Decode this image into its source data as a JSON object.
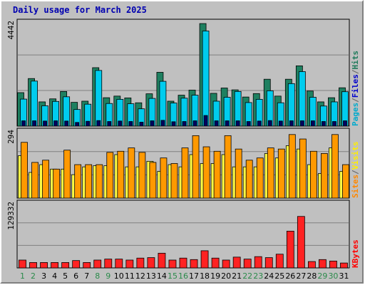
{
  "title": "Daily usage for March 2025",
  "chart_data": [
    {
      "type": "bar",
      "panel": "pages-files-hits",
      "categories": [
        "1",
        "2",
        "3",
        "4",
        "5",
        "6",
        "7",
        "8",
        "9",
        "10",
        "11",
        "12",
        "13",
        "14",
        "15",
        "16",
        "17",
        "18",
        "19",
        "20",
        "21",
        "22",
        "23",
        "24",
        "25",
        "26",
        "27",
        "28",
        "29",
        "30",
        "31"
      ],
      "ylim": [
        0,
        4442
      ],
      "y_tick_label": "4442",
      "grid": true,
      "legend_right_vertical": [
        {
          "name": "Pages",
          "color": "#00aacc"
        },
        {
          "name": "Files",
          "color": "#0000cc"
        },
        {
          "name": "Hits",
          "color": "#1e7a5a"
        }
      ],
      "series": [
        {
          "name": "Hits",
          "color": "#1e8060",
          "values": [
            1450,
            2060,
            1050,
            1180,
            1500,
            1030,
            1080,
            2530,
            1230,
            1300,
            1220,
            1010,
            1400,
            2330,
            1080,
            1340,
            1560,
            4440,
            1420,
            1650,
            1570,
            1260,
            1410,
            2030,
            1300,
            2030,
            2610,
            1520,
            1050,
            1230,
            1660
          ]
        },
        {
          "name": "Files",
          "color": "#00ccee",
          "values": [
            1170,
            1950,
            880,
            1070,
            1270,
            720,
            950,
            2410,
            980,
            1160,
            970,
            750,
            1200,
            1940,
            1000,
            1210,
            1340,
            4120,
            1080,
            1250,
            1500,
            1020,
            1160,
            1530,
            1010,
            1840,
            2360,
            1250,
            870,
            1050,
            1490
          ]
        },
        {
          "name": "Pages",
          "color": "#000060",
          "values": [
            230,
            230,
            220,
            230,
            220,
            160,
            210,
            240,
            200,
            220,
            200,
            170,
            230,
            250,
            190,
            200,
            230,
            460,
            230,
            230,
            230,
            200,
            220,
            240,
            220,
            230,
            230,
            230,
            200,
            200,
            230
          ]
        }
      ]
    },
    {
      "type": "bar",
      "panel": "sites-visits",
      "categories": [
        "1",
        "2",
        "3",
        "4",
        "5",
        "6",
        "7",
        "8",
        "9",
        "10",
        "11",
        "12",
        "13",
        "14",
        "15",
        "16",
        "17",
        "18",
        "19",
        "20",
        "21",
        "22",
        "23",
        "24",
        "25",
        "26",
        "27",
        "28",
        "29",
        "30",
        "31"
      ],
      "ylim": [
        0,
        294
      ],
      "y_tick_label": "294",
      "grid": true,
      "legend_right_vertical": [
        {
          "name": "Sites",
          "color": "#ff8800"
        },
        {
          "name": "Visits",
          "color": "#ffee00"
        }
      ],
      "series": [
        {
          "name": "Visits",
          "color": "#ffff44",
          "values": [
            190,
            115,
            150,
            130,
            130,
            105,
            140,
            145,
            145,
            195,
            140,
            140,
            165,
            120,
            150,
            140,
            195,
            155,
            155,
            195,
            140,
            140,
            140,
            200,
            180,
            235,
            220,
            150,
            110,
            225,
            120
          ]
        },
        {
          "name": "Sites",
          "color": "#ff9900",
          "values": [
            250,
            160,
            170,
            130,
            215,
            150,
            150,
            150,
            205,
            210,
            225,
            205,
            160,
            180,
            155,
            225,
            280,
            230,
            210,
            280,
            220,
            170,
            180,
            225,
            220,
            285,
            265,
            210,
            200,
            285,
            150
          ]
        }
      ]
    },
    {
      "type": "bar",
      "panel": "kbytes",
      "categories": [
        "1",
        "2",
        "3",
        "4",
        "5",
        "6",
        "7",
        "8",
        "9",
        "10",
        "11",
        "12",
        "13",
        "14",
        "15",
        "16",
        "17",
        "18",
        "19",
        "20",
        "21",
        "22",
        "23",
        "24",
        "25",
        "26",
        "27",
        "28",
        "29",
        "30",
        "31"
      ],
      "ylim": [
        0,
        129332
      ],
      "y_tick_label": "129332",
      "grid": true,
      "legend_right_vertical": [
        {
          "name": "KBytes",
          "color": "#ff0000"
        }
      ],
      "series": [
        {
          "name": "KBytes",
          "color": "#ff2222",
          "values": [
            16000,
            11000,
            11000,
            11000,
            11000,
            15000,
            11000,
            16000,
            18000,
            18000,
            16000,
            20000,
            21000,
            30000,
            16000,
            20000,
            17000,
            35000,
            20000,
            16000,
            22000,
            18000,
            23000,
            21000,
            28000,
            75000,
            105000,
            13000,
            17000,
            14000,
            10000
          ]
        }
      ]
    }
  ],
  "day_labels": [
    {
      "label": "1",
      "color": "#2a8a4a"
    },
    {
      "label": "2",
      "color": "#2a8a4a"
    },
    {
      "label": "3",
      "color": "#000000"
    },
    {
      "label": "4",
      "color": "#000000"
    },
    {
      "label": "5",
      "color": "#000000"
    },
    {
      "label": "6",
      "color": "#000000"
    },
    {
      "label": "7",
      "color": "#000000"
    },
    {
      "label": "8",
      "color": "#2a8a4a"
    },
    {
      "label": "9",
      "color": "#2a8a4a"
    },
    {
      "label": "10",
      "color": "#000000"
    },
    {
      "label": "11",
      "color": "#000000"
    },
    {
      "label": "12",
      "color": "#000000"
    },
    {
      "label": "13",
      "color": "#000000"
    },
    {
      "label": "14",
      "color": "#000000"
    },
    {
      "label": "15",
      "color": "#2a8a4a"
    },
    {
      "label": "16",
      "color": "#2a8a4a"
    },
    {
      "label": "17",
      "color": "#000000"
    },
    {
      "label": "18",
      "color": "#000000"
    },
    {
      "label": "19",
      "color": "#000000"
    },
    {
      "label": "20",
      "color": "#000000"
    },
    {
      "label": "21",
      "color": "#000000"
    },
    {
      "label": "22",
      "color": "#2a8a4a"
    },
    {
      "label": "23",
      "color": "#2a8a4a"
    },
    {
      "label": "24",
      "color": "#000000"
    },
    {
      "label": "25",
      "color": "#000000"
    },
    {
      "label": "26",
      "color": "#000000"
    },
    {
      "label": "27",
      "color": "#000000"
    },
    {
      "label": "28",
      "color": "#000000"
    },
    {
      "label": "29",
      "color": "#2a8a4a"
    },
    {
      "label": "30",
      "color": "#2a8a4a"
    },
    {
      "label": "31",
      "color": "#000000"
    }
  ],
  "colors": {
    "panel_bg": "#c0c0c0",
    "grid": "#808080",
    "title": "#0000b0"
  }
}
